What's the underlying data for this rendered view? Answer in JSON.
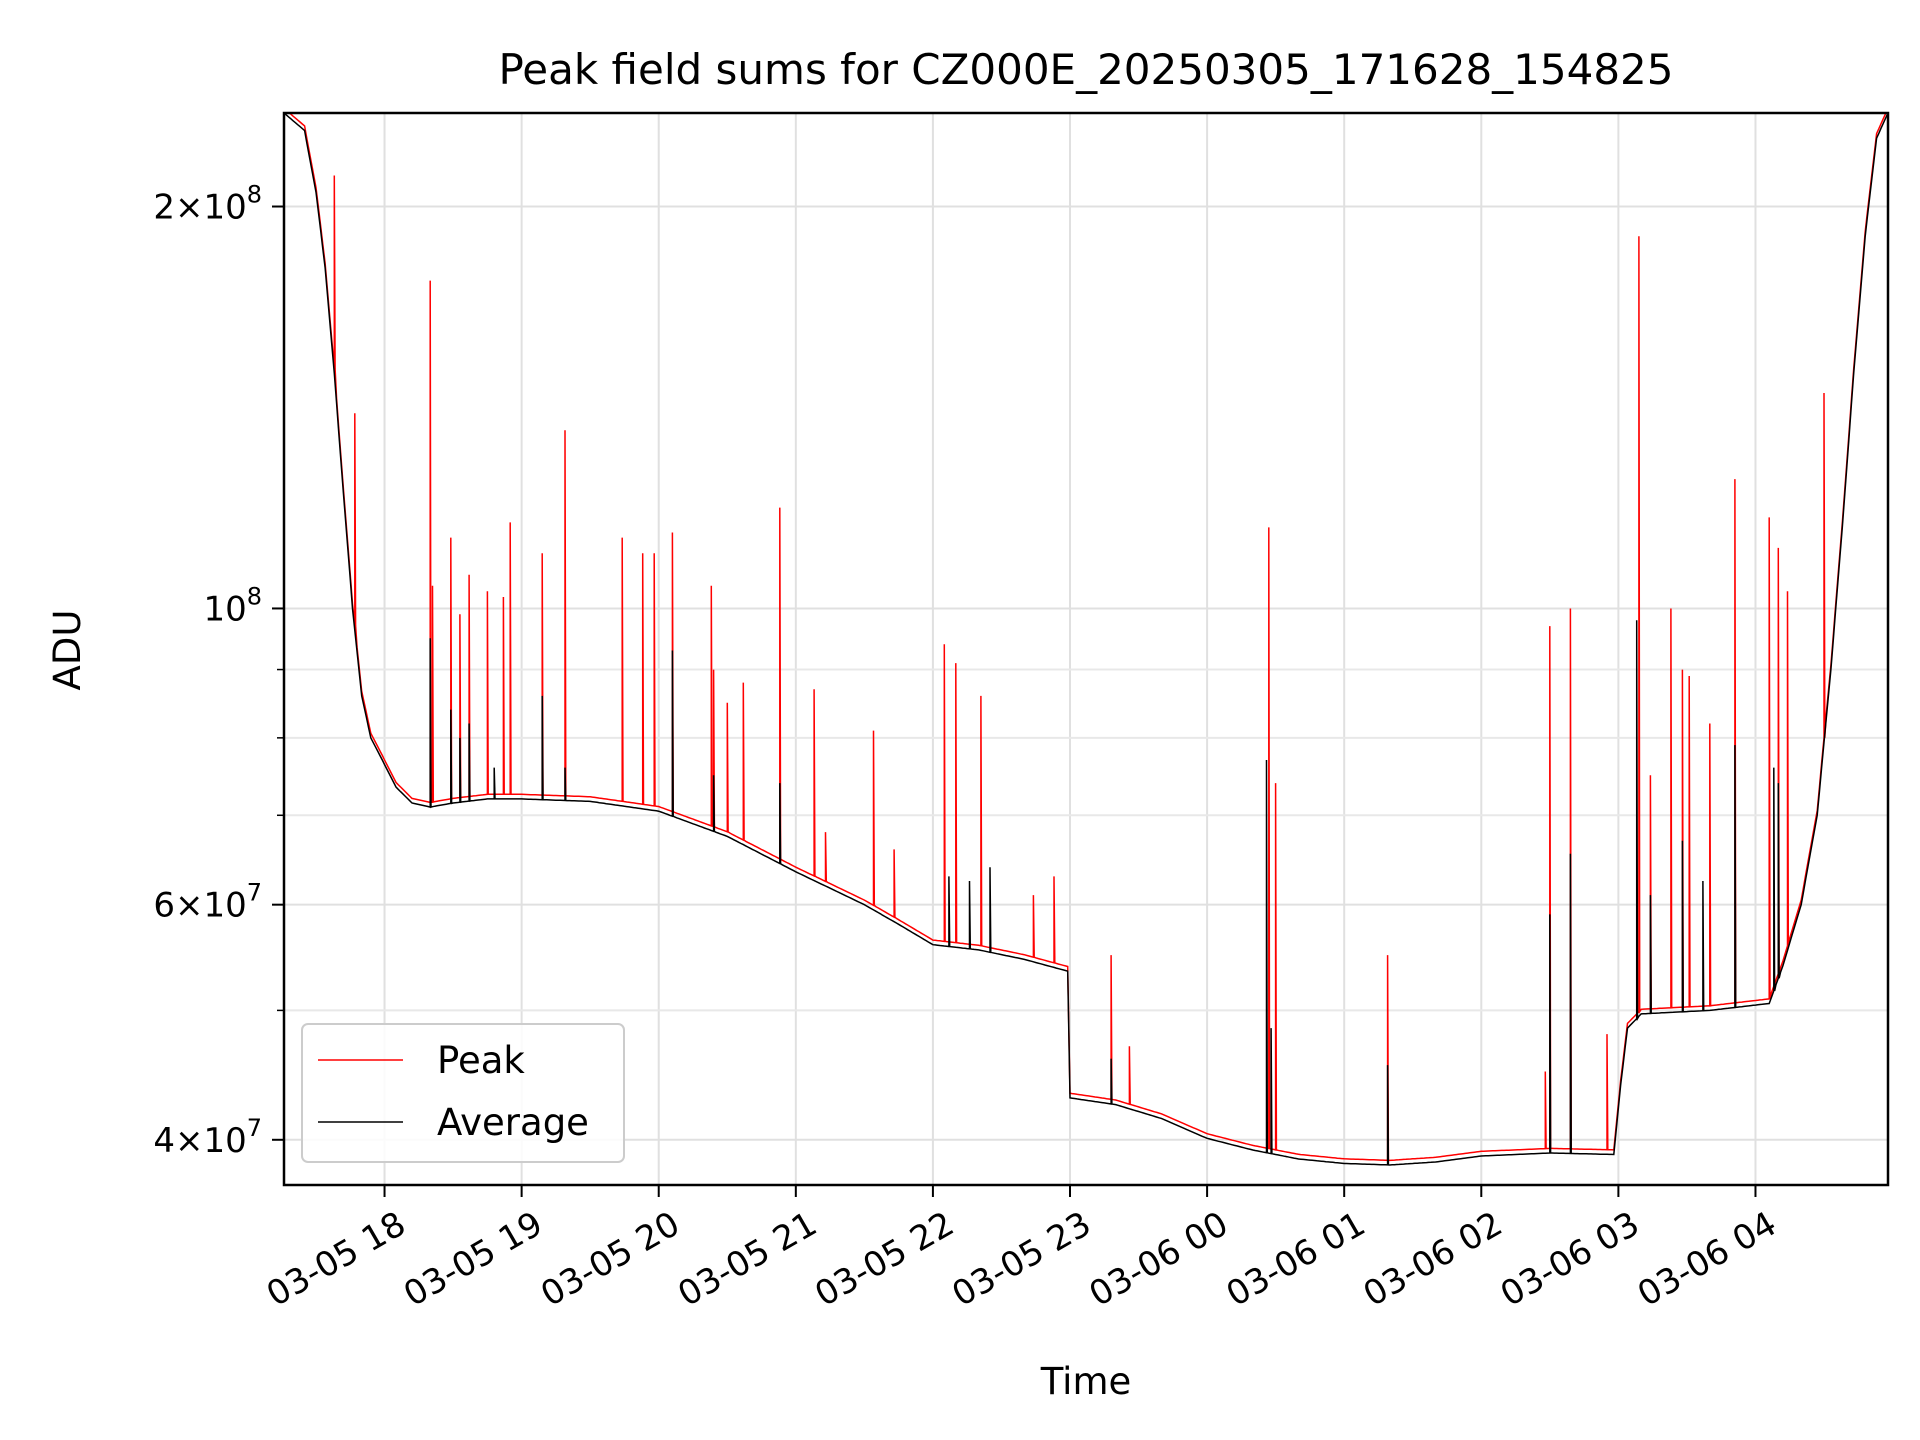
{
  "chart_data": {
    "type": "line",
    "title": "Peak field sums for CZ000E_20250305_171628_154825",
    "xlabel": "Time",
    "ylabel": "ADU",
    "yscale": "log",
    "grid": true,
    "legend_position": "lower-left",
    "xlim": [
      "2025-03-05 17:16",
      "2025-03-06 04:58"
    ],
    "ylim": [
      37000000,
      235000000
    ],
    "x_ticks": [
      {
        "t": "2025-03-05 18:00",
        "label": "03-05 18"
      },
      {
        "t": "2025-03-05 19:00",
        "label": "03-05 19"
      },
      {
        "t": "2025-03-05 20:00",
        "label": "03-05 20"
      },
      {
        "t": "2025-03-05 21:00",
        "label": "03-05 21"
      },
      {
        "t": "2025-03-05 22:00",
        "label": "03-05 22"
      },
      {
        "t": "2025-03-05 23:00",
        "label": "03-05 23"
      },
      {
        "t": "2025-03-06 00:00",
        "label": "03-06 00"
      },
      {
        "t": "2025-03-06 01:00",
        "label": "03-06 01"
      },
      {
        "t": "2025-03-06 02:00",
        "label": "03-06 02"
      },
      {
        "t": "2025-03-06 03:00",
        "label": "03-06 03"
      },
      {
        "t": "2025-03-06 04:00",
        "label": "03-06 04"
      }
    ],
    "y_major_ticks": [
      {
        "v": 40000000,
        "mant": "4",
        "exp": "7"
      },
      {
        "v": 60000000,
        "mant": "6",
        "exp": "7"
      },
      {
        "v": 100000000,
        "mant": "",
        "exp": "8"
      },
      {
        "v": 200000000,
        "mant": "2",
        "exp": "8"
      }
    ],
    "y_minor_ticks": [
      50000000,
      70000000,
      80000000,
      90000000
    ],
    "series": [
      {
        "name": "Average",
        "color": "#000000",
        "points": [
          [
            "2025-03-05 17:16",
            235000000
          ],
          [
            "2025-03-05 17:25",
            228000000
          ],
          [
            "2025-03-05 17:30",
            205000000
          ],
          [
            "2025-03-05 17:34",
            180000000
          ],
          [
            "2025-03-05 17:38",
            150000000
          ],
          [
            "2025-03-05 17:42",
            122000000
          ],
          [
            "2025-03-05 17:46",
            100000000
          ],
          [
            "2025-03-05 17:50",
            86000000
          ],
          [
            "2025-03-05 17:54",
            80000000
          ],
          [
            "2025-03-05 17:59",
            77000000
          ],
          [
            "2025-03-05 18:05",
            73500000
          ],
          [
            "2025-03-05 18:12",
            71500000
          ],
          [
            "2025-03-05 18:20",
            71000000
          ],
          [
            "2025-03-05 18:30",
            71500000
          ],
          [
            "2025-03-05 18:45",
            72000000
          ],
          [
            "2025-03-05 19:00",
            72000000
          ],
          [
            "2025-03-05 19:30",
            71700000
          ],
          [
            "2025-03-05 20:00",
            70500000
          ],
          [
            "2025-03-05 20:30",
            67500000
          ],
          [
            "2025-03-05 21:00",
            63500000
          ],
          [
            "2025-03-05 21:30",
            60000000
          ],
          [
            "2025-03-05 21:45",
            58000000
          ],
          [
            "2025-03-05 22:00",
            56000000
          ],
          [
            "2025-03-05 22:20",
            55500000
          ],
          [
            "2025-03-05 22:40",
            54600000
          ],
          [
            "2025-03-05 22:59",
            53500000
          ],
          [
            "2025-03-05 23:00",
            43000000
          ],
          [
            "2025-03-05 23:20",
            42500000
          ],
          [
            "2025-03-05 23:40",
            41500000
          ],
          [
            "2025-03-06 00:00",
            40100000
          ],
          [
            "2025-03-06 00:20",
            39300000
          ],
          [
            "2025-03-06 00:40",
            38700000
          ],
          [
            "2025-03-06 01:00",
            38400000
          ],
          [
            "2025-03-06 01:20",
            38300000
          ],
          [
            "2025-03-06 01:40",
            38500000
          ],
          [
            "2025-03-06 02:00",
            38900000
          ],
          [
            "2025-03-06 02:30",
            39100000
          ],
          [
            "2025-03-06 02:58",
            39000000
          ],
          [
            "2025-03-06 03:01",
            44000000
          ],
          [
            "2025-03-06 03:04",
            48500000
          ],
          [
            "2025-03-06 03:10",
            49700000
          ],
          [
            "2025-03-06 03:40",
            50000000
          ],
          [
            "2025-03-06 04:06",
            50600000
          ],
          [
            "2025-03-06 04:12",
            54000000
          ],
          [
            "2025-03-06 04:20",
            60000000
          ],
          [
            "2025-03-06 04:27",
            70000000
          ],
          [
            "2025-03-06 04:33",
            90000000
          ],
          [
            "2025-03-06 04:38",
            115000000
          ],
          [
            "2025-03-06 04:43",
            150000000
          ],
          [
            "2025-03-06 04:48",
            190000000
          ],
          [
            "2025-03-06 04:53",
            225000000
          ],
          [
            "2025-03-06 04:58",
            235000000
          ]
        ],
        "spikes": [
          [
            "2025-03-05 18:20",
            95000000
          ],
          [
            "2025-03-05 18:29",
            84000000
          ],
          [
            "2025-03-05 18:33",
            80000000
          ],
          [
            "2025-03-05 18:37",
            82000000
          ],
          [
            "2025-03-05 18:48",
            76000000
          ],
          [
            "2025-03-05 19:09",
            86000000
          ],
          [
            "2025-03-05 19:19",
            76000000
          ],
          [
            "2025-03-05 20:06",
            93000000
          ],
          [
            "2025-03-05 20:24",
            75000000
          ],
          [
            "2025-03-05 20:53",
            74000000
          ],
          [
            "2025-03-05 22:07",
            63000000
          ],
          [
            "2025-03-05 22:16",
            62500000
          ],
          [
            "2025-03-05 22:25",
            64000000
          ],
          [
            "2025-03-05 23:18",
            46000000
          ],
          [
            "2025-03-06 00:26",
            77000000
          ],
          [
            "2025-03-06 00:28",
            48500000
          ],
          [
            "2025-03-06 01:19",
            45500000
          ],
          [
            "2025-03-06 02:30",
            59000000
          ],
          [
            "2025-03-06 02:39",
            65500000
          ],
          [
            "2025-03-06 03:08",
            98000000
          ],
          [
            "2025-03-06 03:14",
            61000000
          ],
          [
            "2025-03-06 03:28",
            67000000
          ],
          [
            "2025-03-06 03:37",
            62500000
          ],
          [
            "2025-03-06 03:51",
            79000000
          ],
          [
            "2025-03-06 04:08",
            76000000
          ],
          [
            "2025-03-06 04:10",
            74000000
          ]
        ]
      },
      {
        "name": "Peak",
        "color": "#ff0000",
        "spikes": [
          [
            "2025-03-05 17:38",
            211000000
          ],
          [
            "2025-03-05 17:47",
            140000000
          ],
          [
            "2025-03-05 18:20",
            176000000
          ],
          [
            "2025-03-05 18:21",
            104000000
          ],
          [
            "2025-03-05 18:29",
            113000000
          ],
          [
            "2025-03-05 18:33",
            99000000
          ],
          [
            "2025-03-05 18:37",
            106000000
          ],
          [
            "2025-03-05 18:45",
            103000000
          ],
          [
            "2025-03-05 18:52",
            102000000
          ],
          [
            "2025-03-05 18:55",
            116000000
          ],
          [
            "2025-03-05 19:09",
            110000000
          ],
          [
            "2025-03-05 19:19",
            136000000
          ],
          [
            "2025-03-05 19:44",
            113000000
          ],
          [
            "2025-03-05 19:53",
            110000000
          ],
          [
            "2025-03-05 19:58",
            110000000
          ],
          [
            "2025-03-05 20:06",
            114000000
          ],
          [
            "2025-03-05 20:23",
            104000000
          ],
          [
            "2025-03-05 20:24",
            90000000
          ],
          [
            "2025-03-05 20:30",
            85000000
          ],
          [
            "2025-03-05 20:37",
            88000000
          ],
          [
            "2025-03-05 20:53",
            119000000
          ],
          [
            "2025-03-05 21:08",
            87000000
          ],
          [
            "2025-03-05 21:13",
            68000000
          ],
          [
            "2025-03-05 21:34",
            81000000
          ],
          [
            "2025-03-05 21:43",
            66000000
          ],
          [
            "2025-03-05 22:05",
            94000000
          ],
          [
            "2025-03-05 22:10",
            91000000
          ],
          [
            "2025-03-05 22:21",
            86000000
          ],
          [
            "2025-03-05 22:44",
            61000000
          ],
          [
            "2025-03-05 22:53",
            63000000
          ],
          [
            "2025-03-05 23:18",
            55000000
          ],
          [
            "2025-03-05 23:26",
            47000000
          ],
          [
            "2025-03-06 00:27",
            115000000
          ],
          [
            "2025-03-06 00:30",
            74000000
          ],
          [
            "2025-03-06 01:19",
            55000000
          ],
          [
            "2025-03-06 02:28",
            45000000
          ],
          [
            "2025-03-06 02:30",
            97000000
          ],
          [
            "2025-03-06 02:39",
            100000000
          ],
          [
            "2025-03-06 02:55",
            48000000
          ],
          [
            "2025-03-06 03:09",
            190000000
          ],
          [
            "2025-03-06 03:14",
            75000000
          ],
          [
            "2025-03-06 03:23",
            100000000
          ],
          [
            "2025-03-06 03:28",
            90000000
          ],
          [
            "2025-03-06 03:31",
            89000000
          ],
          [
            "2025-03-06 03:40",
            82000000
          ],
          [
            "2025-03-06 03:51",
            125000000
          ],
          [
            "2025-03-06 04:06",
            117000000
          ],
          [
            "2025-03-06 04:10",
            111000000
          ],
          [
            "2025-03-06 04:14",
            103000000
          ],
          [
            "2025-03-06 04:30",
            145000000
          ]
        ]
      }
    ]
  }
}
